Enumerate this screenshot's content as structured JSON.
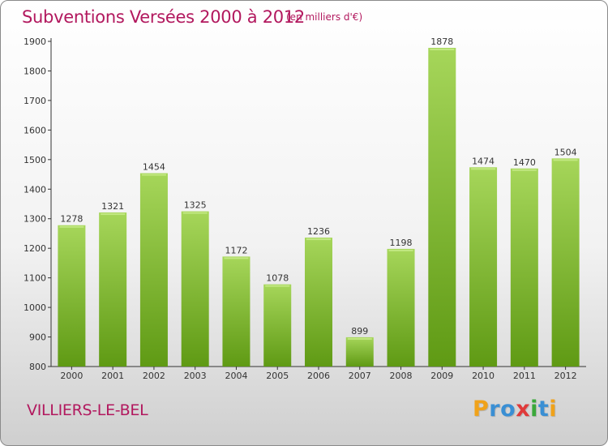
{
  "header": {
    "title": "Subventions Versées 2000 à 2012",
    "subtitle": "(en milliers d'€)"
  },
  "footer": {
    "place": "VILLIERS-LE-BEL",
    "logo": "Proxiti"
  },
  "colors": {
    "title": "#b2185e",
    "bar_light": "#a6d65a",
    "bar_dark": "#5f9a14",
    "logo_letters": [
      "#f0a21a",
      "#3a8fd4",
      "#3a8fd4",
      "#e03a3a",
      "#3aa83a",
      "#3a8fd4",
      "#f0a21a"
    ]
  },
  "chart_data": {
    "type": "bar",
    "categories": [
      "2000",
      "2001",
      "2002",
      "2003",
      "2004",
      "2005",
      "2006",
      "2007",
      "2008",
      "2009",
      "2010",
      "2011",
      "2012"
    ],
    "values": [
      1278,
      1321,
      1454,
      1325,
      1172,
      1078,
      1236,
      899,
      1198,
      1878,
      1474,
      1470,
      1504
    ],
    "value_labels": [
      "1278",
      "1321",
      "1454",
      "1325",
      "1172",
      "1078",
      "1236",
      "899",
      "1198",
      "1878",
      "1474",
      "1470",
      "1504"
    ],
    "ylim": [
      800,
      1900
    ],
    "yticks": [
      "800",
      "900",
      "1000",
      "1100",
      "1200",
      "1300",
      "1400",
      "1500",
      "1600",
      "1700",
      "1800",
      "1900"
    ],
    "grid": false,
    "legend": "none"
  }
}
